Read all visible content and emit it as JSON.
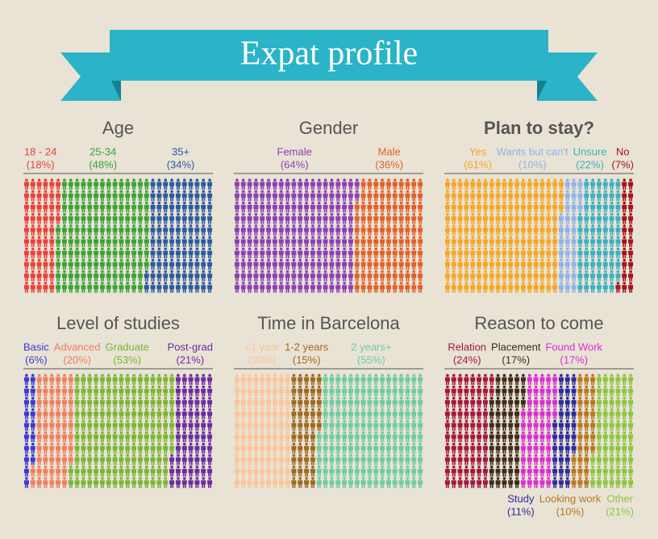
{
  "title": "Expat profile",
  "chart_data": [
    {
      "type": "pictogram",
      "title": "Age",
      "categories": [
        "18 - 24",
        "25-34",
        "35+"
      ],
      "values": [
        18,
        48,
        34
      ],
      "value_labels": [
        "(18%)",
        "(48%)",
        "(34%)"
      ],
      "colors": [
        "#e8413c",
        "#3aa336",
        "#2a5a9f"
      ]
    },
    {
      "type": "pictogram",
      "title": "Gender",
      "categories": [
        "Female",
        "Male"
      ],
      "values": [
        64,
        36
      ],
      "value_labels": [
        "(64%)",
        "(36%)"
      ],
      "colors": [
        "#8a3fb5",
        "#e0602a"
      ]
    },
    {
      "type": "pictogram",
      "title": "Plan to stay?",
      "title_weight": "bold",
      "categories": [
        "Yes",
        "Wants but can't",
        "Unsure",
        "No"
      ],
      "values": [
        61,
        10,
        22,
        7
      ],
      "value_labels": [
        "(61%)",
        "(10%)",
        "(22%)",
        "(7%)"
      ],
      "colors": [
        "#f5a623",
        "#8fb3e8",
        "#3bb0bf",
        "#a3141b"
      ]
    },
    {
      "type": "pictogram",
      "title": "Level of studies",
      "categories": [
        "Basic",
        "Advanced",
        "Graduate",
        "Post-grad"
      ],
      "values": [
        6,
        20,
        53,
        21
      ],
      "value_labels": [
        "(6%)",
        "(20%)",
        "(53%)",
        "(21%)"
      ],
      "colors": [
        "#3a3ad0",
        "#ef7f5f",
        "#7ab534",
        "#6a2ca0"
      ]
    },
    {
      "type": "pictogram",
      "title": "Time in Barcelona",
      "categories": [
        "<1 year",
        "1-2 years",
        "2 years+"
      ],
      "values": [
        30,
        15,
        55
      ],
      "value_labels": [
        "(30%)",
        "(15%)",
        "(55%)"
      ],
      "colors": [
        "#fbc49a",
        "#9c6a1e",
        "#6ccca0"
      ]
    },
    {
      "type": "pictogram",
      "title": "Reason to come",
      "categories": [
        "Relation",
        "Placement",
        "Found Work",
        "Study",
        "Looking work",
        "Other"
      ],
      "values": [
        24,
        17,
        17,
        11,
        10,
        21
      ],
      "value_labels": [
        "(24%)",
        "(17%)",
        "(17%)",
        "(11%)",
        "(10%)",
        "(21%)"
      ],
      "colors": [
        "#a3173f",
        "#3d2a1a",
        "#d62fd0",
        "#2c2a9c",
        "#b7771e",
        "#8cc63f"
      ]
    }
  ]
}
